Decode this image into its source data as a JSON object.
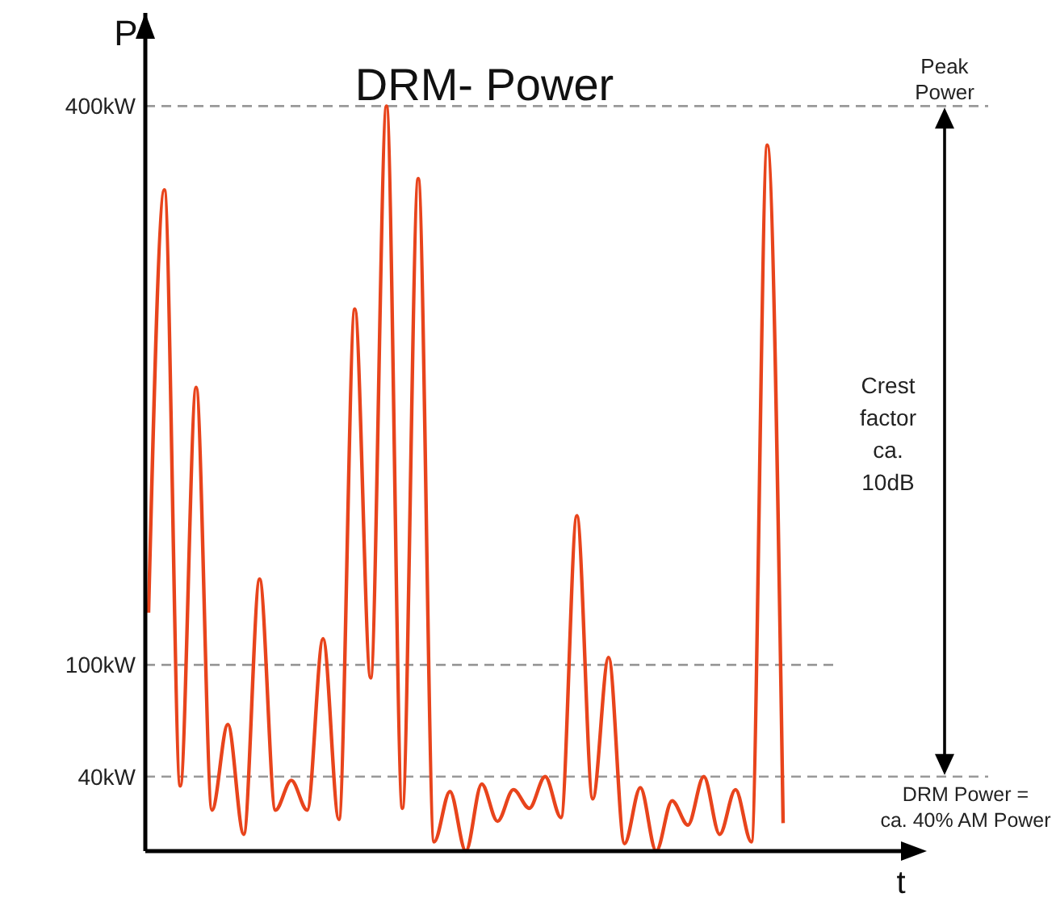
{
  "chart_data": {
    "type": "line",
    "title": "DRM- Power",
    "xlabel": "t",
    "ylabel": "P",
    "categories": [
      null,
      null,
      null,
      null,
      null,
      null,
      null,
      null,
      null,
      null,
      null,
      null,
      null,
      null,
      null,
      null,
      null,
      null,
      null,
      null,
      null,
      null,
      null,
      null,
      null,
      null,
      null,
      null,
      null,
      null,
      null,
      null,
      null,
      null,
      null,
      null,
      null,
      null,
      null,
      null,
      null
    ],
    "series": [
      {
        "color": "#e8441c",
        "values": [
          128,
          355,
          35,
          249,
          22,
          68,
          9,
          146,
          22,
          38,
          22,
          114,
          17,
          291,
          93,
          400,
          23,
          361,
          5,
          32,
          0,
          36,
          16,
          33,
          23,
          40,
          18,
          180,
          28,
          104,
          4,
          34,
          0,
          27,
          14,
          40,
          9,
          33,
          5,
          379,
          15
        ]
      }
    ],
    "ylim": [
      0,
      450
    ],
    "yticks": [
      {
        "value": 40,
        "label": "40kW"
      },
      {
        "value": 100,
        "label": "100kW"
      },
      {
        "value": 400,
        "label": "400kW"
      }
    ],
    "ref_lines": [
      {
        "axis": "y",
        "value": 400,
        "label": "Peak Power",
        "color": "#999999",
        "line_style": "dashed"
      },
      {
        "axis": "y",
        "value": 100,
        "color": "#999999",
        "line_style": "dashed"
      },
      {
        "axis": "y",
        "value": 40,
        "label": "DRM Power = ca. 40% AM Power",
        "color": "#999999",
        "line_style": "dashed"
      }
    ],
    "annotations": [
      "Crest factor ca. 10dB"
    ],
    "grid": false,
    "marker": "none",
    "line_style": "solid"
  }
}
